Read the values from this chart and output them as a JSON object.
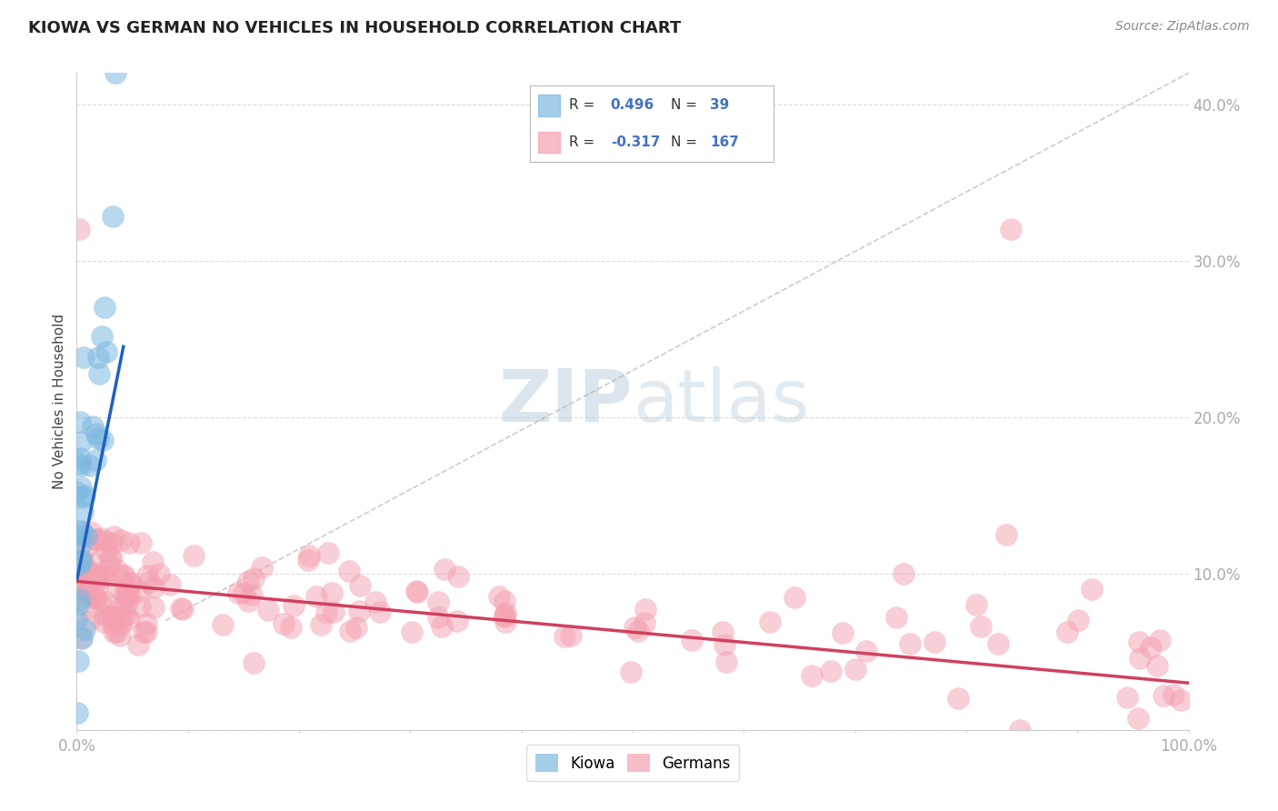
{
  "title": "KIOWA VS GERMAN NO VEHICLES IN HOUSEHOLD CORRELATION CHART",
  "source": "Source: ZipAtlas.com",
  "ylabel": "No Vehicles in Household",
  "xlim": [
    0.0,
    1.0
  ],
  "ylim": [
    0.0,
    0.42
  ],
  "x_ticks": [
    0.0,
    0.1,
    0.2,
    0.3,
    0.4,
    0.5,
    0.6,
    0.7,
    0.8,
    0.9,
    1.0
  ],
  "x_tick_labels": [
    "0.0%",
    "",
    "",
    "",
    "",
    "",
    "",
    "",
    "",
    "",
    "100.0%"
  ],
  "y_ticks": [
    0.0,
    0.1,
    0.2,
    0.3,
    0.4
  ],
  "y_tick_labels": [
    "",
    "10.0%",
    "20.0%",
    "30.0%",
    "40.0%"
  ],
  "kiowa_color": "#7db8e0",
  "german_color": "#f4a0b0",
  "kiowa_line_color": "#2060c0",
  "german_line_color": "#d04060",
  "kiowa_R": 0.496,
  "kiowa_N": 39,
  "german_R": -0.317,
  "german_N": 167,
  "watermark1": "ZIP",
  "watermark2": "atlas",
  "background_color": "#ffffff",
  "grid_color": "#cccccc",
  "tick_color": "#4472c4",
  "title_color": "#222222",
  "source_color": "#888888"
}
